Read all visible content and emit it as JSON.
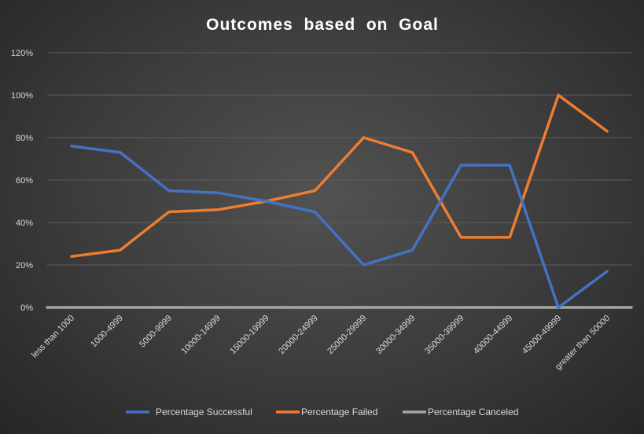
{
  "chart_data": {
    "type": "line",
    "title": "Outcomes  based  on  Goal",
    "categories": [
      "less than 1000",
      "1000-4999",
      "5000-9999",
      "10000-14999",
      "15000-19999",
      "20000-24999",
      "25000-29999",
      "30000-34999",
      "35000-39999",
      "40000-44999",
      "45000-49999",
      "greater than 50000"
    ],
    "series": [
      {
        "name": "Percentage Successful",
        "color": "#4472c4",
        "values": [
          0.76,
          0.73,
          0.55,
          0.54,
          0.5,
          0.45,
          0.2,
          0.27,
          0.67,
          0.67,
          0.0,
          0.17
        ]
      },
      {
        "name": "Percentage Failed",
        "color": "#ed7d31",
        "values": [
          0.24,
          0.27,
          0.45,
          0.46,
          0.5,
          0.55,
          0.8,
          0.73,
          0.33,
          0.33,
          1.0,
          0.83
        ]
      },
      {
        "name": "Percentage Canceled",
        "color": "#a5a5a5",
        "values": [
          0,
          0,
          0,
          0,
          0,
          0,
          0,
          0,
          0,
          0,
          0,
          0
        ]
      }
    ],
    "yticks": [
      "0%",
      "20%",
      "40%",
      "60%",
      "80%",
      "100%",
      "120%"
    ],
    "ylim": [
      0,
      1.2
    ],
    "grid": true,
    "legend_position": "bottom"
  }
}
